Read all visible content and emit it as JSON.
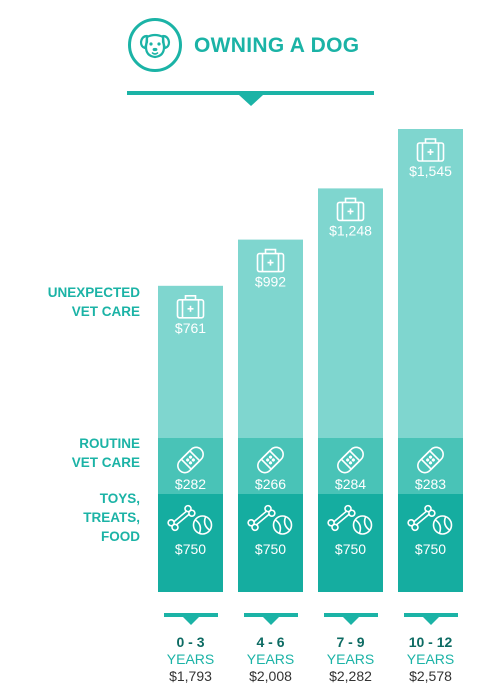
{
  "header": {
    "title": "OWNING A DOG",
    "logo_icon": "dog-face-icon"
  },
  "row_labels": {
    "unexpected": [
      "UNEXPECTED",
      "VET CARE"
    ],
    "routine": [
      "ROUTINE",
      "VET CARE"
    ],
    "toys": [
      "TOYS,",
      "TREATS,",
      "FOOD"
    ]
  },
  "icons": {
    "unexpected": "first-aid-kit-icon",
    "routine": "bandage-icon",
    "toys": "bone-and-ball-icon"
  },
  "colors": {
    "unexpected": "#7fd6cf",
    "routine": "#49c3b7",
    "toys": "#15ada0",
    "accent": "#1bb3a6",
    "range_text": "#0d6b63"
  },
  "chart_data": {
    "type": "bar",
    "stacked": true,
    "categories": [
      "0 - 3",
      "4 - 6",
      "7 - 9",
      "10 - 12"
    ],
    "category_unit": "YEARS",
    "totals": [
      "$1,793",
      "$2,008",
      "$2,282",
      "$2,578"
    ],
    "series": [
      {
        "name": "TOYS, TREATS, FOOD",
        "values": [
          750,
          750,
          750,
          750
        ],
        "labels": [
          "$750",
          "$750",
          "$750",
          "$750"
        ]
      },
      {
        "name": "ROUTINE VET CARE",
        "values": [
          282,
          266,
          284,
          283
        ],
        "labels": [
          "$282",
          "$266",
          "$284",
          "$283"
        ]
      },
      {
        "name": "UNEXPECTED VET CARE",
        "values": [
          761,
          992,
          1248,
          1545
        ],
        "labels": [
          "$761",
          "$992",
          "$1,248",
          "$1,545"
        ]
      }
    ]
  }
}
